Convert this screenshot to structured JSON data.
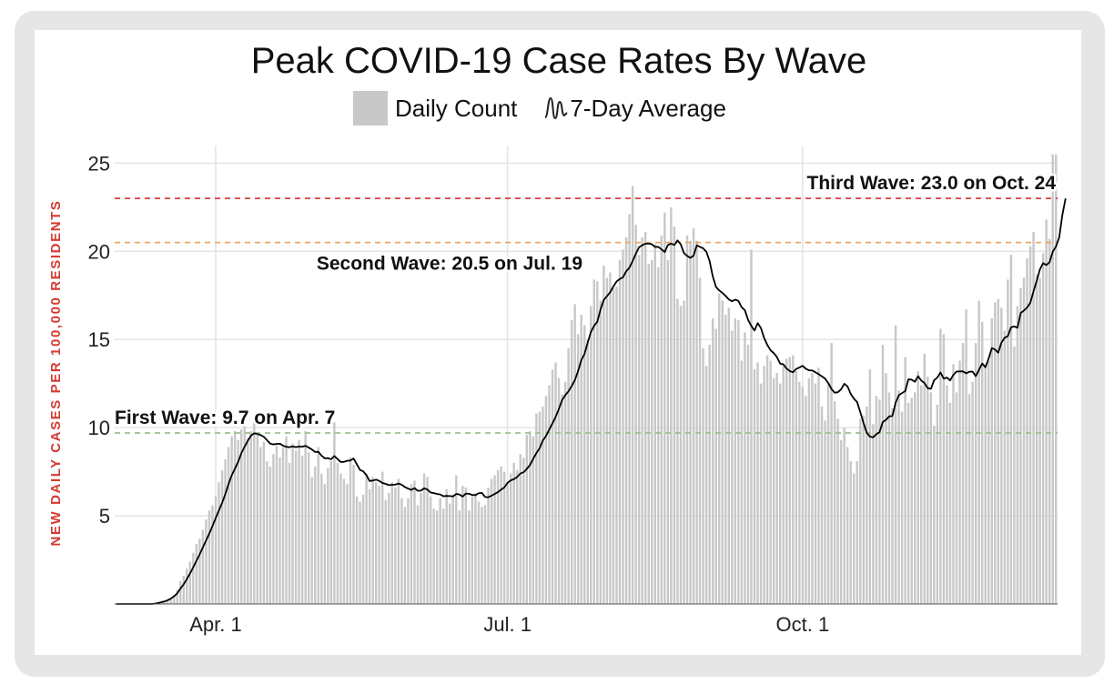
{
  "chart_data": {
    "type": "bar",
    "title": "Peak COVID-19 Case Rates By Wave",
    "ylabel": "NEW DAILY CASES PER 100,000 RESIDENTS",
    "xlabel": "",
    "ylim": [
      0,
      26
    ],
    "yticks": [
      5,
      10,
      15,
      20,
      25
    ],
    "x_start": "Mar. 1",
    "xticks": [
      {
        "day": 31,
        "label": "Apr. 1"
      },
      {
        "day": 122,
        "label": "Jul. 1"
      },
      {
        "day": 214,
        "label": "Oct. 1"
      }
    ],
    "legend": [
      {
        "label": "Daily Count",
        "kind": "bar",
        "color": "#c8c8c8"
      },
      {
        "label": "7-Day Average",
        "kind": "line",
        "color": "#000000"
      }
    ],
    "reference_lines": [
      {
        "name": "third-wave",
        "value": 23.0,
        "color": "#d93a3a",
        "label": "Third Wave: 23.0 on Oct. 24"
      },
      {
        "name": "second-wave",
        "value": 20.5,
        "color": "#e8a865",
        "label": "Second Wave: 20.5 on Jul. 19"
      },
      {
        "name": "first-wave",
        "value": 9.7,
        "color": "#9fbf8c",
        "label": "First Wave: 9.7 on Apr. 7"
      }
    ],
    "series": [
      {
        "name": "Daily Count",
        "values": [
          0,
          0,
          0,
          0,
          0,
          0,
          0,
          0,
          0,
          0,
          0,
          0,
          0,
          0,
          0.1,
          0.1,
          0.2,
          0.3,
          0.5,
          0.8,
          1.3,
          1.6,
          2,
          2.4,
          2.9,
          3.4,
          3.7,
          4.2,
          4.8,
          5.3,
          5.6,
          6.1,
          6.9,
          7.6,
          8.2,
          8.9,
          9.5,
          9.8,
          9.3,
          9.9,
          10.1,
          9.4,
          9.8,
          10.3,
          9.6,
          8.9,
          9.2,
          8.1,
          7.8,
          8.5,
          9.0,
          8.3,
          8.9,
          9.5,
          8.0,
          9.1,
          8.7,
          9.3,
          8.4,
          9.8,
          8.6,
          7.2,
          7.8,
          8.9,
          7.4,
          6.8,
          7.7,
          8.1,
          10.3,
          8.0,
          7.4,
          7.1,
          6.8,
          8.3,
          7.9,
          6.1,
          5.8,
          6.2,
          7.4,
          6.5,
          7.2,
          6.9,
          6.7,
          7.5,
          5.9,
          6.3,
          6.9,
          6.6,
          7.1,
          6.0,
          5.5,
          6.0,
          6.8,
          7.0,
          5.6,
          6.3,
          7.4,
          7.2,
          6.1,
          5.4,
          5.3,
          6.0,
          5.4,
          6.5,
          5.7,
          6.2,
          7.3,
          5.3,
          6.7,
          6.6,
          5.3,
          6.1,
          6.3,
          5.8,
          5.5,
          5.6,
          6.6,
          7.1,
          7.3,
          7.6,
          7.8,
          7.5,
          6.9,
          7.4,
          8.0,
          7.6,
          8.5,
          8.3,
          9.6,
          9.8,
          9.5,
          10.8,
          10.9,
          11.2,
          11.8,
          12.4,
          13.3,
          13.7,
          12.8,
          11.9,
          12.6,
          14.5,
          16.1,
          17.0,
          15.3,
          16.4,
          15.8,
          15.0,
          16.9,
          18.4,
          18.3,
          17.2,
          19.2,
          18.5,
          18.8,
          17.9,
          18.0,
          19.5,
          20.1,
          20.8,
          22.1,
          23.7,
          21.5,
          19.8,
          20.8,
          21.1,
          19.3,
          19.5,
          20.4,
          19.1,
          20.9,
          22.2,
          19.5,
          22.5,
          21.4,
          17.3,
          16.9,
          17.2,
          20.9,
          20.6,
          21.3,
          20.6,
          18.5,
          14.5,
          13.5,
          14.7,
          16.2,
          15.6,
          17.6,
          17.2,
          16.4,
          16.8,
          15.5,
          16.2,
          16.1,
          13.8,
          15.4,
          14.7,
          20.1,
          13.3,
          13.7,
          12.5,
          13.5,
          14.1,
          13.8,
          12.8,
          13.1,
          12.5,
          13.6,
          13.9,
          14.0,
          14.1,
          13.2,
          12.6,
          12.3,
          11.8,
          12.8,
          13.1,
          12.5,
          13.4,
          11.2,
          10.4,
          12.5,
          14.8,
          11.5,
          10.5,
          9.3,
          10.0,
          8.9,
          8.1,
          7.4,
          8.1,
          10.5,
          10.7,
          11.2,
          13.3,
          10.2,
          11.8,
          11.6,
          14.7,
          13.1,
          12.0,
          11.1,
          15.8,
          12.1,
          10.9,
          14.0,
          11.4,
          11.7,
          12.0,
          13.2,
          12.4,
          14.2,
          12.9,
          12.0,
          10.1,
          11.3,
          15.6,
          15.3,
          12.4,
          11.4,
          13.6,
          12.0,
          13.8,
          14.8,
          16.7,
          11.9,
          12.6,
          14.8,
          17.2,
          16.0,
          13.6,
          13.8,
          16.2,
          17.1,
          17.3,
          16.8,
          15.5,
          18.4,
          19.8,
          14.6,
          16.9,
          17.9,
          18.5,
          19.6,
          20.3,
          21.1,
          18.7,
          18.5,
          19.9,
          21.8,
          20.7,
          25.5,
          25.5
        ]
      },
      {
        "name": "7-Day Average",
        "values": [
          0,
          0,
          0,
          0,
          0,
          0,
          0,
          0,
          0,
          0,
          0,
          0,
          0.02,
          0.05,
          0.1,
          0.14,
          0.21,
          0.3,
          0.43,
          0.6,
          0.87,
          1.11,
          1.41,
          1.73,
          2.08,
          2.45,
          2.81,
          3.21,
          3.6,
          3.99,
          4.42,
          4.87,
          5.3,
          5.73,
          6.23,
          6.8,
          7.3,
          7.67,
          8.06,
          8.55,
          8.91,
          9.25,
          9.55,
          9.68,
          9.64,
          9.58,
          9.48,
          9.29,
          9.09,
          9.05,
          9.08,
          9.09,
          8.98,
          8.91,
          8.89,
          8.94,
          8.89,
          8.93,
          8.92,
          8.97,
          8.87,
          8.76,
          8.62,
          8.63,
          8.41,
          8.26,
          8.27,
          8.21,
          8.39,
          8.22,
          8.05,
          8.06,
          8.12,
          8.14,
          8.25,
          7.92,
          7.6,
          7.52,
          7.3,
          6.97,
          7.0,
          7.05,
          6.98,
          6.86,
          6.81,
          6.74,
          6.76,
          6.77,
          6.83,
          6.76,
          6.63,
          6.54,
          6.47,
          6.57,
          6.42,
          6.43,
          6.56,
          6.49,
          6.32,
          6.29,
          6.24,
          6.21,
          6.11,
          6.13,
          6.12,
          6.1,
          6.24,
          6.21,
          6.09,
          6.26,
          6.25,
          6.18,
          6.17,
          6.28,
          6.3,
          6.07,
          6.05,
          6.14,
          6.24,
          6.34,
          6.49,
          6.61,
          6.87,
          7.01,
          7.08,
          7.2,
          7.4,
          7.47,
          7.66,
          7.88,
          8.23,
          8.56,
          8.83,
          9.27,
          9.53,
          9.89,
          10.24,
          10.61,
          11.06,
          11.56,
          11.84,
          12.06,
          12.36,
          12.7,
          13.21,
          13.83,
          14.18,
          14.83,
          15.43,
          15.78,
          16.01,
          16.71,
          17.24,
          17.46,
          17.68,
          18.01,
          18.29,
          18.43,
          18.53,
          18.87,
          19.07,
          19.45,
          19.86,
          20.23,
          20.35,
          20.43,
          20.44,
          20.4,
          20.25,
          20.25,
          20.11,
          19.96,
          20.36,
          20.44,
          20.36,
          20.62,
          20.4,
          19.9,
          19.74,
          19.63,
          19.75,
          20.34,
          20.25,
          20.17,
          19.97,
          19.45,
          18.57,
          17.98,
          17.78,
          17.64,
          17.47,
          17.27,
          17.17,
          17.26,
          17.18,
          16.83,
          16.66,
          16.11,
          15.77,
          15.51,
          15.93,
          15.65,
          15.09,
          14.69,
          14.39,
          14.23,
          14.0,
          13.63,
          13.59,
          13.35,
          13.21,
          13.14,
          13.33,
          13.41,
          13.51,
          13.34,
          13.25,
          13.24,
          13.14,
          13.03,
          12.91,
          12.78,
          12.53,
          12.19,
          11.98,
          12.01,
          12.17,
          12.49,
          12.34,
          11.92,
          11.64,
          11.45,
          10.87,
          10.26,
          9.71,
          9.49,
          9.45,
          9.63,
          9.75,
          10.32,
          10.44,
          10.64,
          10.66,
          11.41,
          11.84,
          11.96,
          12.07,
          12.74,
          12.72,
          12.6,
          12.92,
          12.67,
          12.53,
          12.24,
          12.2,
          12.69,
          12.84,
          13.13,
          12.78,
          12.84,
          12.68,
          12.99,
          13.18,
          13.19,
          13.19,
          13.08,
          13.17,
          13.18,
          12.92,
          13.28,
          13.64,
          13.42,
          13.91,
          14.51,
          14.43,
          14.25,
          14.82,
          15.1,
          15.19,
          15.69,
          15.74,
          15.66,
          16.5,
          16.64,
          16.81,
          17.08,
          17.73,
          18.32,
          18.98,
          19.33,
          19.22,
          19.38,
          19.98,
          20.27,
          20.78,
          22.07,
          23.0
        ]
      }
    ]
  }
}
